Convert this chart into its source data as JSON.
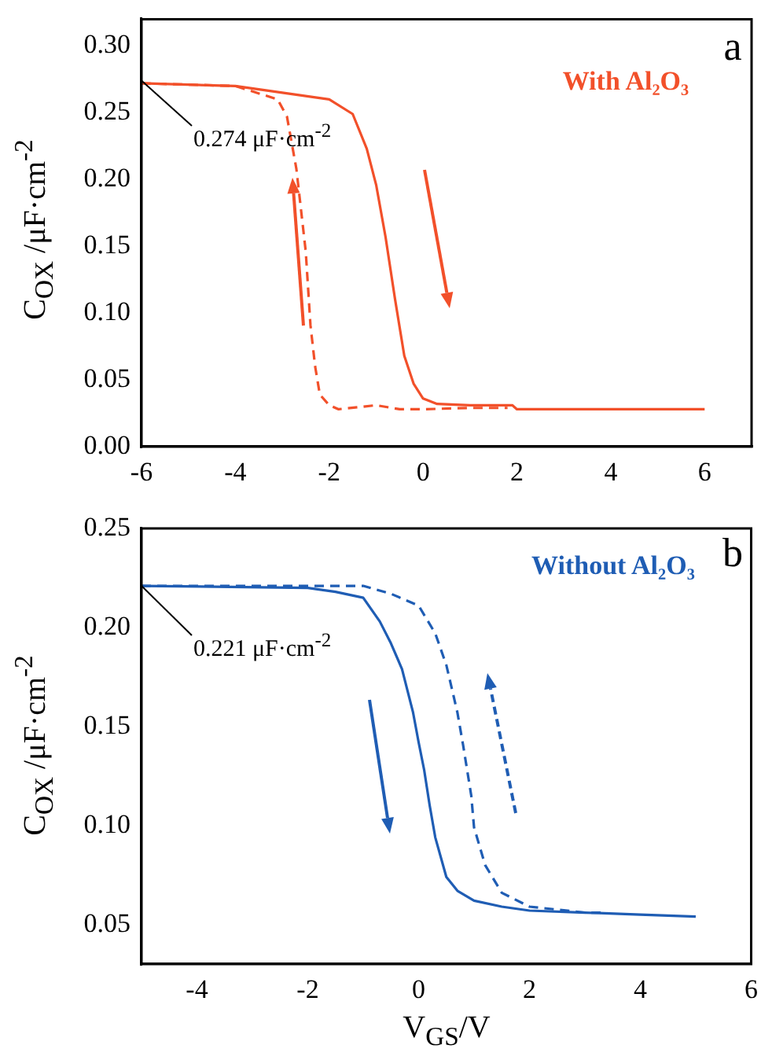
{
  "chart_data": [
    {
      "type": "line",
      "ylabel": "C$_{OX}$ /μF·cm$^{-2}$",
      "xlim": [
        -6,
        7
      ],
      "ylim": [
        0,
        0.32
      ],
      "xticks": [
        -6,
        -4,
        -2,
        0,
        2,
        4,
        6
      ],
      "yticks": [
        {
          "value": 0,
          "label": "0.00"
        },
        {
          "value": 0.05,
          "label": "0.05"
        },
        {
          "value": 0.1,
          "label": "0.10"
        },
        {
          "value": 0.15,
          "label": "0.15"
        },
        {
          "value": 0.2,
          "label": "0.20"
        },
        {
          "value": 0.25,
          "label": "0.25"
        },
        {
          "value": 0.3,
          "label": "0.30"
        }
      ],
      "grid": false,
      "legend": false,
      "marker": "none",
      "series": [
        {
          "color": "#f2502a",
          "line_style": "solid",
          "x": [
            -6,
            -4,
            -3,
            -2,
            -1.5,
            -1.2,
            -1,
            -0.8,
            -0.6,
            -0.4,
            -0.2,
            0,
            0.3,
            1,
            1.9,
            2,
            6
          ],
          "values": [
            0.272,
            0.27,
            0.265,
            0.26,
            0.249,
            0.223,
            0.196,
            0.157,
            0.111,
            0.068,
            0.047,
            0.036,
            0.032,
            0.031,
            0.031,
            0.028,
            0.028
          ]
        },
        {
          "color": "#f2502a",
          "line_style": "dashed",
          "x": [
            -6,
            -4,
            -3.1,
            -2.9,
            -2.7,
            -2.5,
            -2.4,
            -2.3,
            -2.2,
            -2,
            -1.8,
            -1,
            -0.5,
            0,
            1,
            1.8
          ],
          "values": [
            0.272,
            0.27,
            0.26,
            0.247,
            0.208,
            0.146,
            0.091,
            0.06,
            0.039,
            0.031,
            0.028,
            0.031,
            0.028,
            0.028,
            0.029,
            0.029
          ]
        }
      ],
      "annotations": [
        "a",
        "With Al₂O₃",
        {
          "text": "0.274 μF·cm$^{-2}$",
          "x": -6,
          "y": 0.274
        }
      ]
    },
    {
      "type": "line",
      "xlabel": "V$_{GS}$/V",
      "ylabel": "C$_{OX}$ /μF·cm$^{-2}$",
      "xlim": [
        -5,
        6
      ],
      "ylim": [
        0.03,
        0.25
      ],
      "xticks": [
        -4,
        -2,
        0,
        2,
        4,
        6
      ],
      "yticks": [
        0.05,
        {
          "value": 0.1,
          "label": "0.10"
        },
        0.15,
        {
          "value": 0.2,
          "label": "0.20"
        },
        0.25
      ],
      "grid": false,
      "legend": false,
      "marker": "none",
      "series": [
        {
          "color": "#1f5db4",
          "line_style": "solid",
          "x": [
            -5,
            -2,
            -1.5,
            -1,
            -0.7,
            -0.5,
            -0.3,
            -0.1,
            0,
            0.1,
            0.2,
            0.3,
            0.5,
            0.7,
            1,
            1.5,
            2,
            3,
            4,
            5
          ],
          "values": [
            0.221,
            0.22,
            0.218,
            0.215,
            0.203,
            0.192,
            0.179,
            0.157,
            0.142,
            0.128,
            0.11,
            0.094,
            0.074,
            0.067,
            0.062,
            0.059,
            0.057,
            0.056,
            0.055,
            0.054
          ]
        },
        {
          "color": "#1f5db4",
          "line_style": "dashed",
          "x": [
            -5,
            -1,
            -0.5,
            0,
            0.3,
            0.5,
            0.7,
            0.8,
            0.95,
            1,
            1.2,
            1.5,
            2,
            3,
            3.4
          ],
          "values": [
            0.221,
            0.221,
            0.217,
            0.211,
            0.197,
            0.181,
            0.157,
            0.141,
            0.115,
            0.099,
            0.08,
            0.066,
            0.059,
            0.056,
            0.056
          ]
        }
      ],
      "annotations": [
        "b",
        "Without Al₂O₃",
        {
          "text": "0.221 μF·cm$^{-2}$",
          "x": -5,
          "y": 0.221
        }
      ]
    }
  ]
}
